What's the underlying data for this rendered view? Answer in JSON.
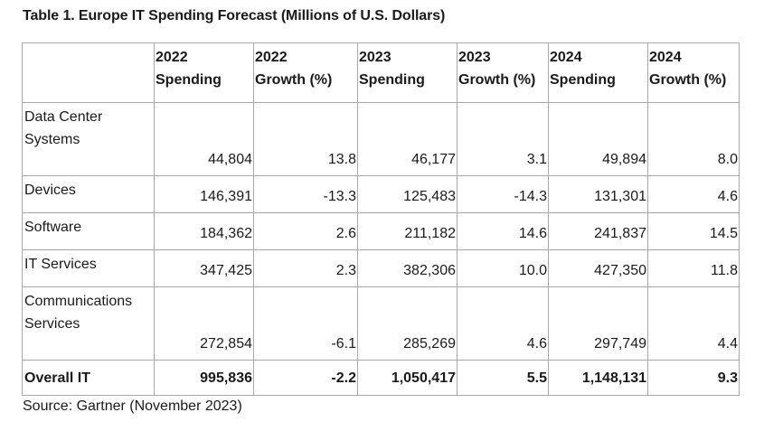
{
  "title": "Table 1. Europe IT Spending Forecast (Millions of U.S. Dollars)",
  "columns": [
    {
      "line1": "2022",
      "line2": "Spending"
    },
    {
      "line1": "2022",
      "line2": "Growth (%)"
    },
    {
      "line1": "2023",
      "line2": "Spending"
    },
    {
      "line1": "2023",
      "line2": "Growth (%)"
    },
    {
      "line1": "2024",
      "line2": "Spending"
    },
    {
      "line1": "2024",
      "line2": "Growth (%)"
    }
  ],
  "rows": [
    {
      "line1": "Data Center",
      "line2": "Systems",
      "values": [
        "44,804",
        "13.8",
        "46,177",
        "3.1",
        "49,894",
        "8.0"
      ]
    },
    {
      "line1": "Devices",
      "line2": "",
      "values": [
        "146,391",
        "-13.3",
        "125,483",
        "-14.3",
        "131,301",
        "4.6"
      ]
    },
    {
      "line1": "Software",
      "line2": "",
      "values": [
        "184,362",
        "2.6",
        "211,182",
        "14.6",
        "241,837",
        "14.5"
      ]
    },
    {
      "line1": "IT Services",
      "line2": "",
      "values": [
        "347,425",
        "2.3",
        "382,306",
        "10.0",
        "427,350",
        "11.8"
      ]
    },
    {
      "line1": "Communications",
      "line2": "Services",
      "values": [
        "272,854",
        "-6.1",
        "285,269",
        "4.6",
        "297,749",
        "4.4"
      ]
    }
  ],
  "total": {
    "label": "Overall IT",
    "values": [
      "995,836",
      "-2.2",
      "1,050,417",
      "5.5",
      "1,148,131",
      "9.3"
    ]
  },
  "source": "Source: Gartner (November 2023)"
}
